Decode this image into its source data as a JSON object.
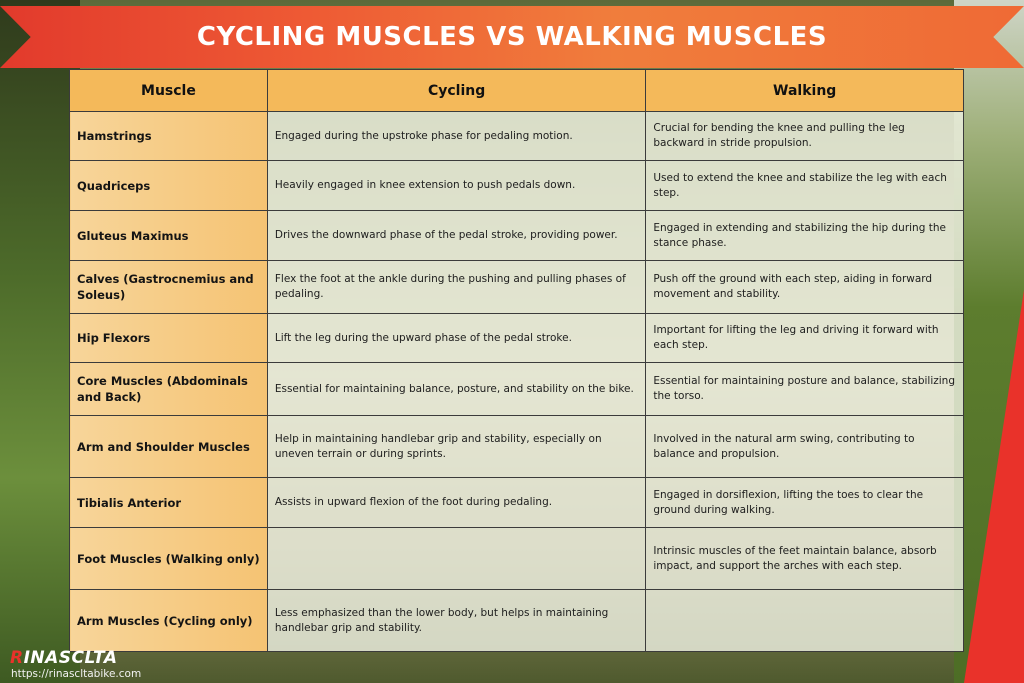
{
  "title": "CYCLING MUSCLES VS WALKING MUSCLES",
  "table": {
    "headers": [
      "Muscle",
      "Cycling",
      "Walking"
    ],
    "rows": [
      {
        "muscle": "Hamstrings",
        "cycling": "Engaged during the upstroke phase for pedaling motion.",
        "walking": "Crucial for bending the knee and pulling the leg backward in stride propulsion."
      },
      {
        "muscle": "Quadriceps",
        "cycling": "Heavily engaged in knee extension to push pedals down.",
        "walking": "Used to extend the knee and stabilize the leg with each step."
      },
      {
        "muscle": "Gluteus Maximus",
        "cycling": "Drives the downward phase of the pedal stroke, providing power.",
        "walking": "Engaged in extending and stabilizing the hip during the stance phase."
      },
      {
        "muscle": "Calves (Gastrocnemius and Soleus)",
        "cycling": "Flex the foot at the ankle during the pushing and pulling phases of pedaling.",
        "walking": "Push off the ground with each step, aiding in forward movement and stability."
      },
      {
        "muscle": "Hip Flexors",
        "cycling": "Lift the leg during the upward phase of the pedal stroke.",
        "walking": "Important for lifting the leg and driving it forward with each step."
      },
      {
        "muscle": "Core Muscles (Abdominals and Back)",
        "cycling": "Essential for maintaining balance, posture, and stability on the bike.",
        "walking": "Essential for maintaining posture and balance, stabilizing the torso."
      },
      {
        "muscle": "Arm and Shoulder Muscles",
        "cycling": "Help in maintaining handlebar grip and stability, especially on uneven terrain or during sprints.",
        "walking": "Involved in the natural arm swing, contributing to balance and propulsion."
      },
      {
        "muscle": "Tibialis Anterior",
        "cycling": "Assists in upward flexion of the foot during pedaling.",
        "walking": "Engaged in dorsiflexion, lifting the toes to clear the ground during walking."
      },
      {
        "muscle": "Foot Muscles (Walking only)",
        "cycling": "",
        "walking": "Intrinsic muscles of the feet maintain balance, absorb impact, and support the arches with each step."
      },
      {
        "muscle": "Arm Muscles (Cycling only)",
        "cycling": "Less emphasized than the lower body, but helps in maintaining handlebar grip and stability.",
        "walking": ""
      }
    ]
  },
  "logo": {
    "first_letter": "R",
    "rest": "INASCLTA"
  },
  "website": "https://rinascltаbike.com",
  "colors": {
    "banner": "#ee5a34",
    "header": "#f4b95a",
    "muscle_cell": "#f5c373",
    "accent_red": "#e9322a"
  }
}
